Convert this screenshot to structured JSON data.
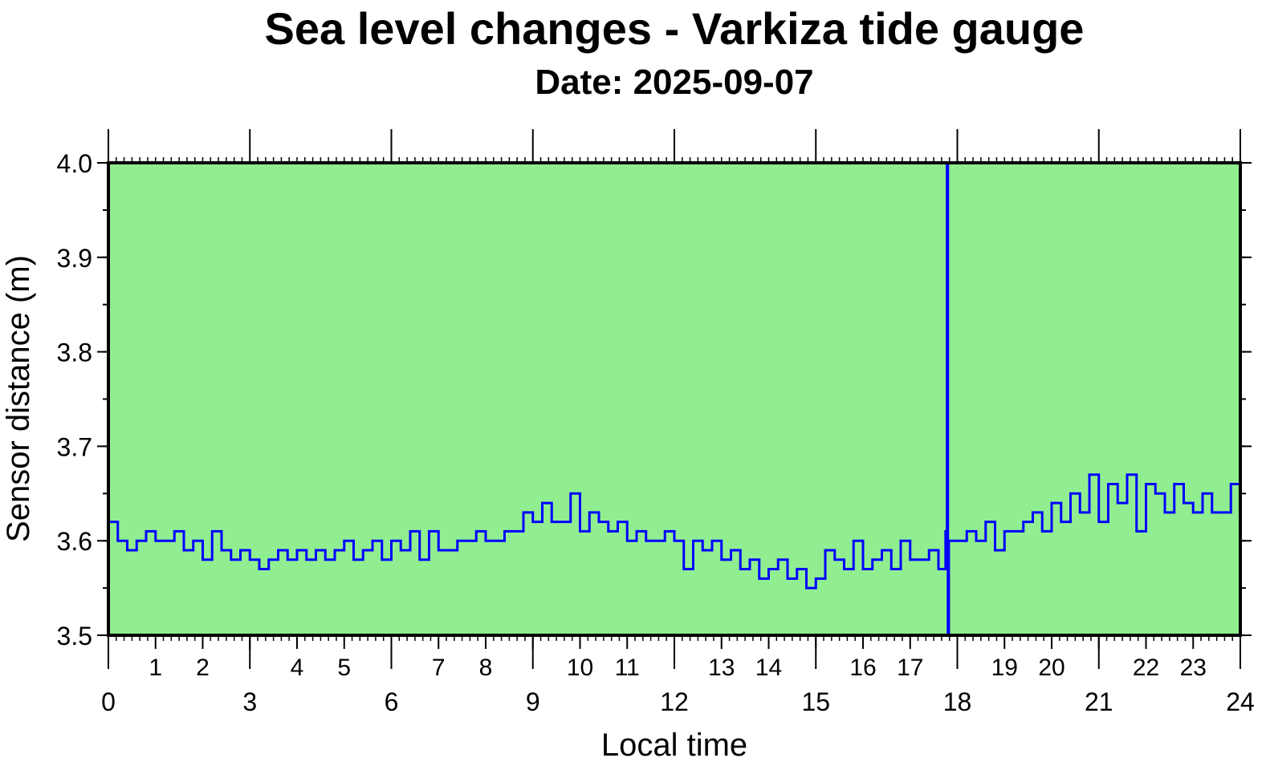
{
  "chart_data": {
    "type": "line",
    "title": "Sea level changes - Varkiza tide gauge",
    "subtitle": "Date: 2025-09-07",
    "xlabel": "Local time",
    "ylabel": "Sensor distance (m)",
    "xlim": [
      0,
      24
    ],
    "ylim": [
      3.5,
      4.0
    ],
    "x_major_ticks": [
      "0",
      "3",
      "6",
      "9",
      "12",
      "15",
      "18",
      "21",
      "24"
    ],
    "x_minor_ticks": [
      "1",
      "2",
      "4",
      "5",
      "7",
      "8",
      "10",
      "11",
      "13",
      "14",
      "16",
      "17",
      "19",
      "20",
      "22",
      "23"
    ],
    "y_ticks": [
      "3.5",
      "3.6",
      "3.7",
      "3.8",
      "3.9",
      "4.0"
    ],
    "background_color": "#90ee90",
    "line_color": "#0000ff",
    "series": [
      {
        "name": "Sensor distance",
        "x": [
          0.0,
          0.2,
          0.4,
          0.6,
          0.8,
          1.0,
          1.2,
          1.4,
          1.6,
          1.8,
          2.0,
          2.2,
          2.4,
          2.6,
          2.8,
          3.0,
          3.2,
          3.4,
          3.6,
          3.8,
          4.0,
          4.2,
          4.4,
          4.6,
          4.8,
          5.0,
          5.2,
          5.4,
          5.6,
          5.8,
          6.0,
          6.2,
          6.4,
          6.6,
          6.8,
          7.0,
          7.2,
          7.4,
          7.6,
          7.8,
          8.0,
          8.2,
          8.4,
          8.6,
          8.8,
          9.0,
          9.2,
          9.4,
          9.6,
          9.8,
          10.0,
          10.2,
          10.4,
          10.6,
          10.8,
          11.0,
          11.2,
          11.4,
          11.6,
          11.8,
          12.0,
          12.2,
          12.4,
          12.6,
          12.8,
          13.0,
          13.2,
          13.4,
          13.6,
          13.8,
          14.0,
          14.2,
          14.4,
          14.6,
          14.8,
          15.0,
          15.2,
          15.4,
          15.6,
          15.8,
          16.0,
          16.2,
          16.4,
          16.6,
          16.8,
          17.0,
          17.2,
          17.4,
          17.6,
          17.75,
          17.78,
          17.8,
          17.82,
          18.0,
          18.2,
          18.4,
          18.6,
          18.8,
          19.0,
          19.2,
          19.4,
          19.6,
          19.8,
          20.0,
          20.2,
          20.4,
          20.6,
          20.8,
          21.0,
          21.2,
          21.4,
          21.6,
          21.8,
          22.0,
          22.2,
          22.4,
          22.6,
          22.8,
          23.0,
          23.2,
          23.4,
          23.6,
          23.8,
          24.0
        ],
        "y": [
          3.62,
          3.6,
          3.59,
          3.6,
          3.61,
          3.6,
          3.6,
          3.61,
          3.59,
          3.6,
          3.58,
          3.61,
          3.59,
          3.58,
          3.59,
          3.58,
          3.57,
          3.58,
          3.59,
          3.58,
          3.59,
          3.58,
          3.59,
          3.58,
          3.59,
          3.6,
          3.58,
          3.59,
          3.6,
          3.58,
          3.6,
          3.59,
          3.61,
          3.58,
          3.61,
          3.59,
          3.59,
          3.6,
          3.6,
          3.61,
          3.6,
          3.6,
          3.61,
          3.61,
          3.63,
          3.62,
          3.64,
          3.62,
          3.62,
          3.65,
          3.61,
          3.63,
          3.62,
          3.61,
          3.62,
          3.6,
          3.61,
          3.6,
          3.6,
          3.61,
          3.6,
          3.57,
          3.6,
          3.59,
          3.6,
          3.58,
          3.59,
          3.57,
          3.58,
          3.56,
          3.57,
          3.58,
          3.56,
          3.57,
          3.55,
          3.56,
          3.59,
          3.58,
          3.57,
          3.6,
          3.57,
          3.58,
          3.59,
          3.57,
          3.6,
          3.58,
          3.58,
          3.59,
          3.57,
          3.61,
          4.0,
          3.5,
          3.6,
          3.6,
          3.61,
          3.6,
          3.62,
          3.59,
          3.61,
          3.61,
          3.62,
          3.63,
          3.61,
          3.64,
          3.62,
          3.65,
          3.63,
          3.67,
          3.62,
          3.66,
          3.64,
          3.67,
          3.61,
          3.66,
          3.65,
          3.63,
          3.66,
          3.64,
          3.63,
          3.65,
          3.63,
          3.63,
          3.66,
          3.64
        ]
      }
    ]
  }
}
